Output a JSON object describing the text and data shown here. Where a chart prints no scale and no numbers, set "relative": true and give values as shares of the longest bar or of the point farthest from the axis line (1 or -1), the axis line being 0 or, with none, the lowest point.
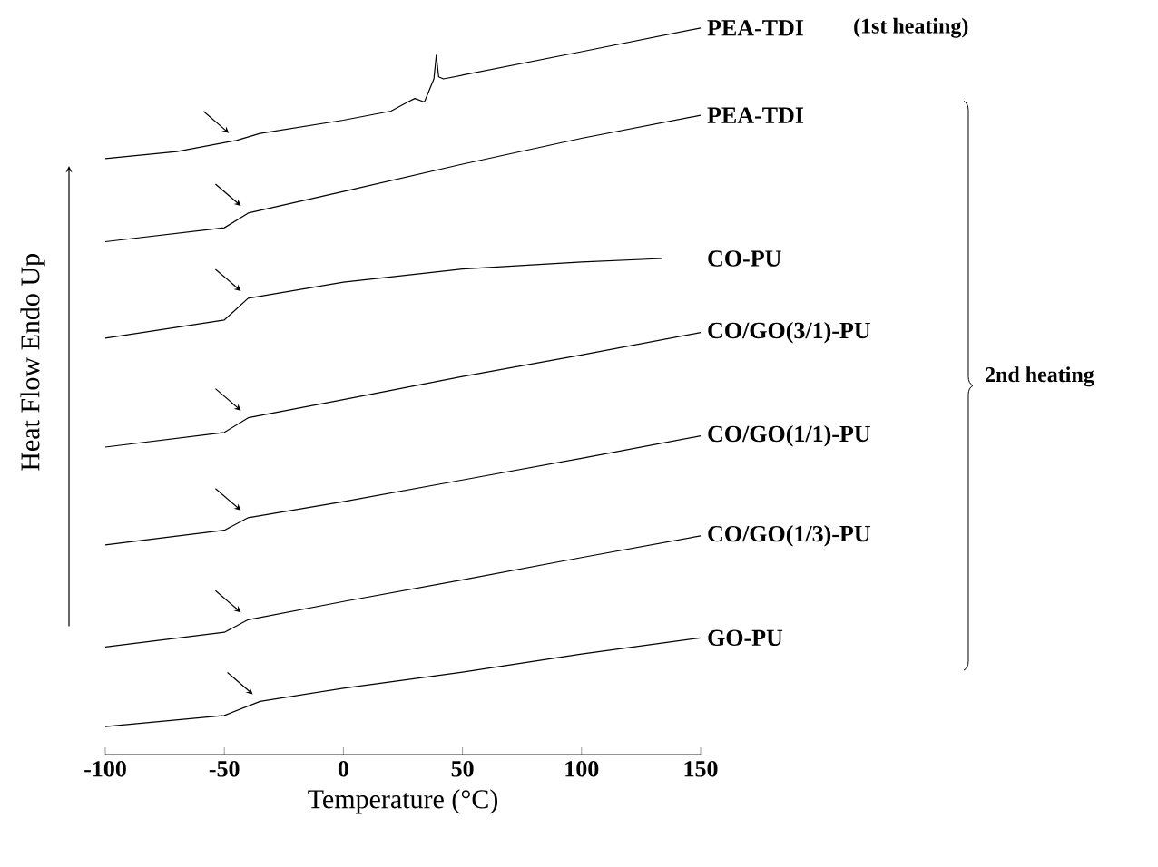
{
  "chart_data": {
    "type": "line",
    "relative": true,
    "xlabel": "Temperature (°C)",
    "ylabel": "Heat Flow Endo Up",
    "xlim": [
      -100,
      150
    ],
    "xticks": [
      -100,
      -50,
      0,
      50,
      100,
      150
    ],
    "annotations": [
      "(1st heating)",
      "2nd heating"
    ],
    "series": [
      {
        "name": "PEA-TDI",
        "color": "#000000",
        "x": [
          -100,
          -70,
          -45,
          -35,
          0,
          20,
          27,
          30,
          34,
          38,
          39,
          40,
          42,
          100,
          150
        ],
        "values": [
          0.813,
          0.823,
          0.839,
          0.849,
          0.868,
          0.881,
          0.894,
          0.899,
          0.894,
          0.927,
          0.961,
          0.93,
          0.927,
          0.966,
          1
        ]
      },
      {
        "name": "PEA-TDI",
        "color": "#000000",
        "x": [
          -100,
          -50,
          -40,
          0,
          50,
          100,
          150
        ],
        "values": [
          0.694,
          0.714,
          0.735,
          0.766,
          0.805,
          0.842,
          0.875
        ]
      },
      {
        "name": "CO-PU",
        "color": "#000000",
        "x": [
          -100,
          -50,
          -40,
          0,
          50,
          100,
          134
        ],
        "values": [
          0.556,
          0.582,
          0.613,
          0.636,
          0.655,
          0.665,
          0.67
        ]
      },
      {
        "name": "CO/GO(3/1)-PU",
        "color": "#000000",
        "x": [
          -100,
          -50,
          -40,
          0,
          50,
          100,
          150
        ],
        "values": [
          0.4,
          0.421,
          0.442,
          0.468,
          0.501,
          0.532,
          0.564
        ]
      },
      {
        "name": "CO/GO(1/1)-PU",
        "color": "#000000",
        "x": [
          -100,
          -50,
          -40,
          0,
          50,
          100,
          150
        ],
        "values": [
          0.26,
          0.281,
          0.299,
          0.322,
          0.353,
          0.384,
          0.416
        ]
      },
      {
        "name": "CO/GO(1/3)-PU",
        "color": "#000000",
        "x": [
          -100,
          -50,
          -40,
          0,
          50,
          100,
          150
        ],
        "values": [
          0.114,
          0.135,
          0.153,
          0.179,
          0.21,
          0.242,
          0.273
        ]
      },
      {
        "name": "GO-PU",
        "color": "#000000",
        "x": [
          -100,
          -50,
          -35,
          0,
          50,
          100,
          150
        ],
        "values": [
          0,
          0.016,
          0.036,
          0.055,
          0.078,
          0.104,
          0.127
        ]
      }
    ]
  }
}
